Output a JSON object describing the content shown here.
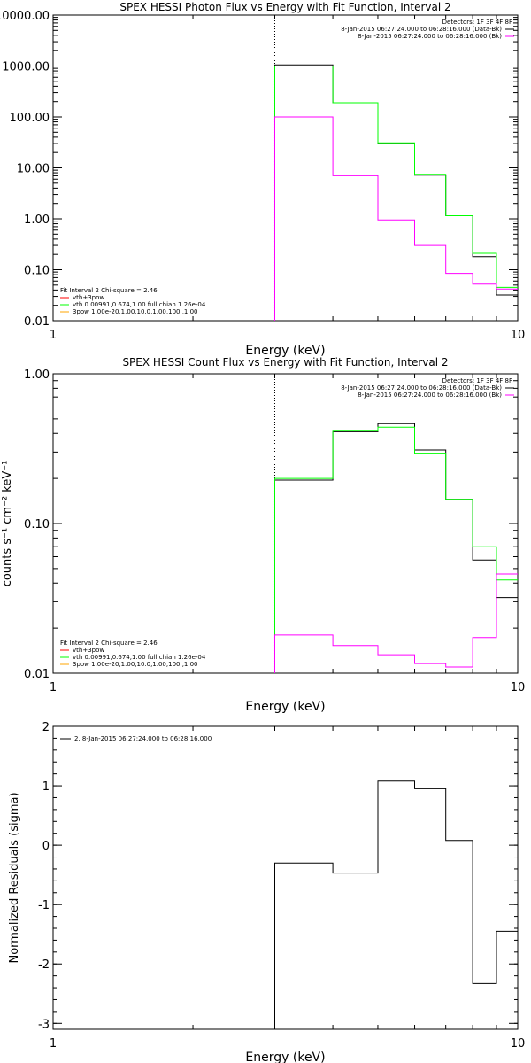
{
  "colors": {
    "axis": "#000000",
    "data": "#000000",
    "model": "#00ff00",
    "bkg": "#ff00ff",
    "model1": "#ff0000",
    "model3": "#ffa500",
    "background": "#ffffff"
  },
  "chart_data": [
    {
      "type": "line",
      "title": "SPEX HESSI Photon Flux vs Energy with Fit Function, Interval 2",
      "xlabel": "Energy (keV)",
      "ylabel": "",
      "xscale": "log",
      "yscale": "log",
      "xlim": [
        1,
        10
      ],
      "ylim": [
        0.01,
        10000
      ],
      "xticks": [
        {
          "v": 1,
          "label": "1"
        },
        {
          "v": 10,
          "label": "10"
        }
      ],
      "yticks": [
        {
          "v": 0.01,
          "label": "0.01"
        },
        {
          "v": 0.1,
          "label": "0.10"
        },
        {
          "v": 1,
          "label": "1.00"
        },
        {
          "v": 10,
          "label": "10.00"
        },
        {
          "v": 100,
          "label": "100.00"
        },
        {
          "v": 1000,
          "label": "1000.00"
        },
        {
          "v": 10000,
          "label": "10000.00"
        }
      ],
      "vline": 3.0,
      "legend_topright": [
        {
          "text": "Detectors: 1F 3F 4F 8F",
          "swatch": ""
        },
        {
          "text": "8-Jan-2015 06:27:24.000 to 06:28:16.000 (Data-Bk)",
          "swatch": "data"
        },
        {
          "text": "8-Jan-2015 06:27:24.000 to 06:28:16.000 (Bk)",
          "swatch": "bkg"
        }
      ],
      "legend_bottomleft": [
        {
          "text": "Fit Interval 2   Chi-square = 2.46",
          "swatch": ""
        },
        {
          "text": "vth+3pow",
          "swatch": "model1"
        },
        {
          "text": "vth 0.00991,0.674,1.00   full chian 1.26e-04",
          "swatch": "model"
        },
        {
          "text": "3pow 1.00e-20,1.00,10.0,1.00,100.,1.00",
          "swatch": "model3"
        }
      ],
      "series": [
        {
          "color": "data",
          "edges": [
            3.0,
            4.0,
            5.0,
            6.0,
            7.0,
            8.0,
            9.0,
            10.0
          ],
          "values": [
            1050,
            190,
            30,
            7.2,
            1.15,
            0.18,
            0.032
          ]
        },
        {
          "color": "model",
          "edges": [
            3.0,
            4.0,
            5.0,
            6.0,
            7.0,
            8.0,
            9.0,
            10.0
          ],
          "values": [
            1000,
            190,
            31,
            7.5,
            1.15,
            0.21,
            0.045
          ]
        },
        {
          "color": "bkg",
          "edges": [
            3.0,
            4.0,
            5.0,
            6.0,
            7.0,
            8.0,
            9.0,
            10.0
          ],
          "values": [
            100,
            7,
            0.95,
            0.3,
            0.085,
            0.052,
            0.042
          ]
        }
      ]
    },
    {
      "type": "line",
      "title": "SPEX HESSI Count Flux vs Energy with Fit Function, Interval 2",
      "xlabel": "Energy (keV)",
      "ylabel": "counts s⁻¹ cm⁻² keV⁻¹",
      "xscale": "log",
      "yscale": "log",
      "xlim": [
        1,
        10
      ],
      "ylim": [
        0.01,
        1
      ],
      "xticks": [
        {
          "v": 1,
          "label": "1"
        },
        {
          "v": 10,
          "label": "10"
        }
      ],
      "yticks": [
        {
          "v": 0.01,
          "label": "0.01"
        },
        {
          "v": 0.1,
          "label": "0.10"
        },
        {
          "v": 1,
          "label": "1.00"
        }
      ],
      "vline": 3.0,
      "legend_topright": [
        {
          "text": "Detectors: 1F 3F 4F 8F",
          "swatch": ""
        },
        {
          "text": "8-Jan-2015 06:27:24.000 to 06:28:16.000 (Data-Bk)",
          "swatch": "data"
        },
        {
          "text": "8-Jan-2015 06:27:24.000 to 06:28:16.000 (Bk)",
          "swatch": "bkg"
        }
      ],
      "legend_bottomleft": [
        {
          "text": "Fit Interval 2   Chi-square = 2.46",
          "swatch": ""
        },
        {
          "text": "vth+3pow",
          "swatch": "model1"
        },
        {
          "text": "vth 0.00991,0.674,1.00   full chian 1.26e-04",
          "swatch": "model"
        },
        {
          "text": "3pow 1.00e-20,1.00,10.0,1.00,100.,1.00",
          "swatch": "model3"
        }
      ],
      "series": [
        {
          "color": "data",
          "edges": [
            3.0,
            4.0,
            5.0,
            6.0,
            7.0,
            8.0,
            9.0,
            10.0
          ],
          "values": [
            0.195,
            0.41,
            0.465,
            0.31,
            0.145,
            0.057,
            0.032
          ]
        },
        {
          "color": "model",
          "edges": [
            3.0,
            4.0,
            5.0,
            6.0,
            7.0,
            8.0,
            9.0,
            10.0
          ],
          "values": [
            0.2,
            0.42,
            0.44,
            0.295,
            0.145,
            0.07,
            0.042
          ]
        },
        {
          "color": "bkg",
          "edges": [
            3.0,
            4.0,
            5.0,
            6.0,
            7.0,
            8.0,
            9.0,
            10.0
          ],
          "values": [
            0.018,
            0.0153,
            0.0133,
            0.0116,
            0.011,
            0.0173,
            0.046
          ]
        }
      ]
    },
    {
      "type": "line",
      "title": "",
      "xlabel": "Energy (keV)",
      "ylabel": "Normalized Residuals (sigma)",
      "xscale": "log",
      "yscale": "linear",
      "xlim": [
        1,
        10
      ],
      "ylim": [
        -3.1,
        2.0
      ],
      "xticks": [
        {
          "v": 1,
          "label": "1"
        },
        {
          "v": 10,
          "label": "10"
        }
      ],
      "yticks": [
        {
          "v": -3,
          "label": "-3"
        },
        {
          "v": -2,
          "label": "-2"
        },
        {
          "v": -1,
          "label": "-1"
        },
        {
          "v": 0,
          "label": "0"
        },
        {
          "v": 1,
          "label": "1"
        },
        {
          "v": 2,
          "label": "2"
        }
      ],
      "legend_topleft": [
        {
          "text": "2.  8-Jan-2015 06:27:24.000 to 06:28:16.000",
          "swatch": "data"
        }
      ],
      "series": [
        {
          "color": "data",
          "edges": [
            3.0,
            4.0,
            5.0,
            6.0,
            7.0,
            8.0,
            9.0,
            10.0
          ],
          "values": [
            -0.3,
            -0.47,
            1.08,
            0.95,
            0.08,
            -2.33,
            -1.45
          ]
        }
      ]
    }
  ]
}
